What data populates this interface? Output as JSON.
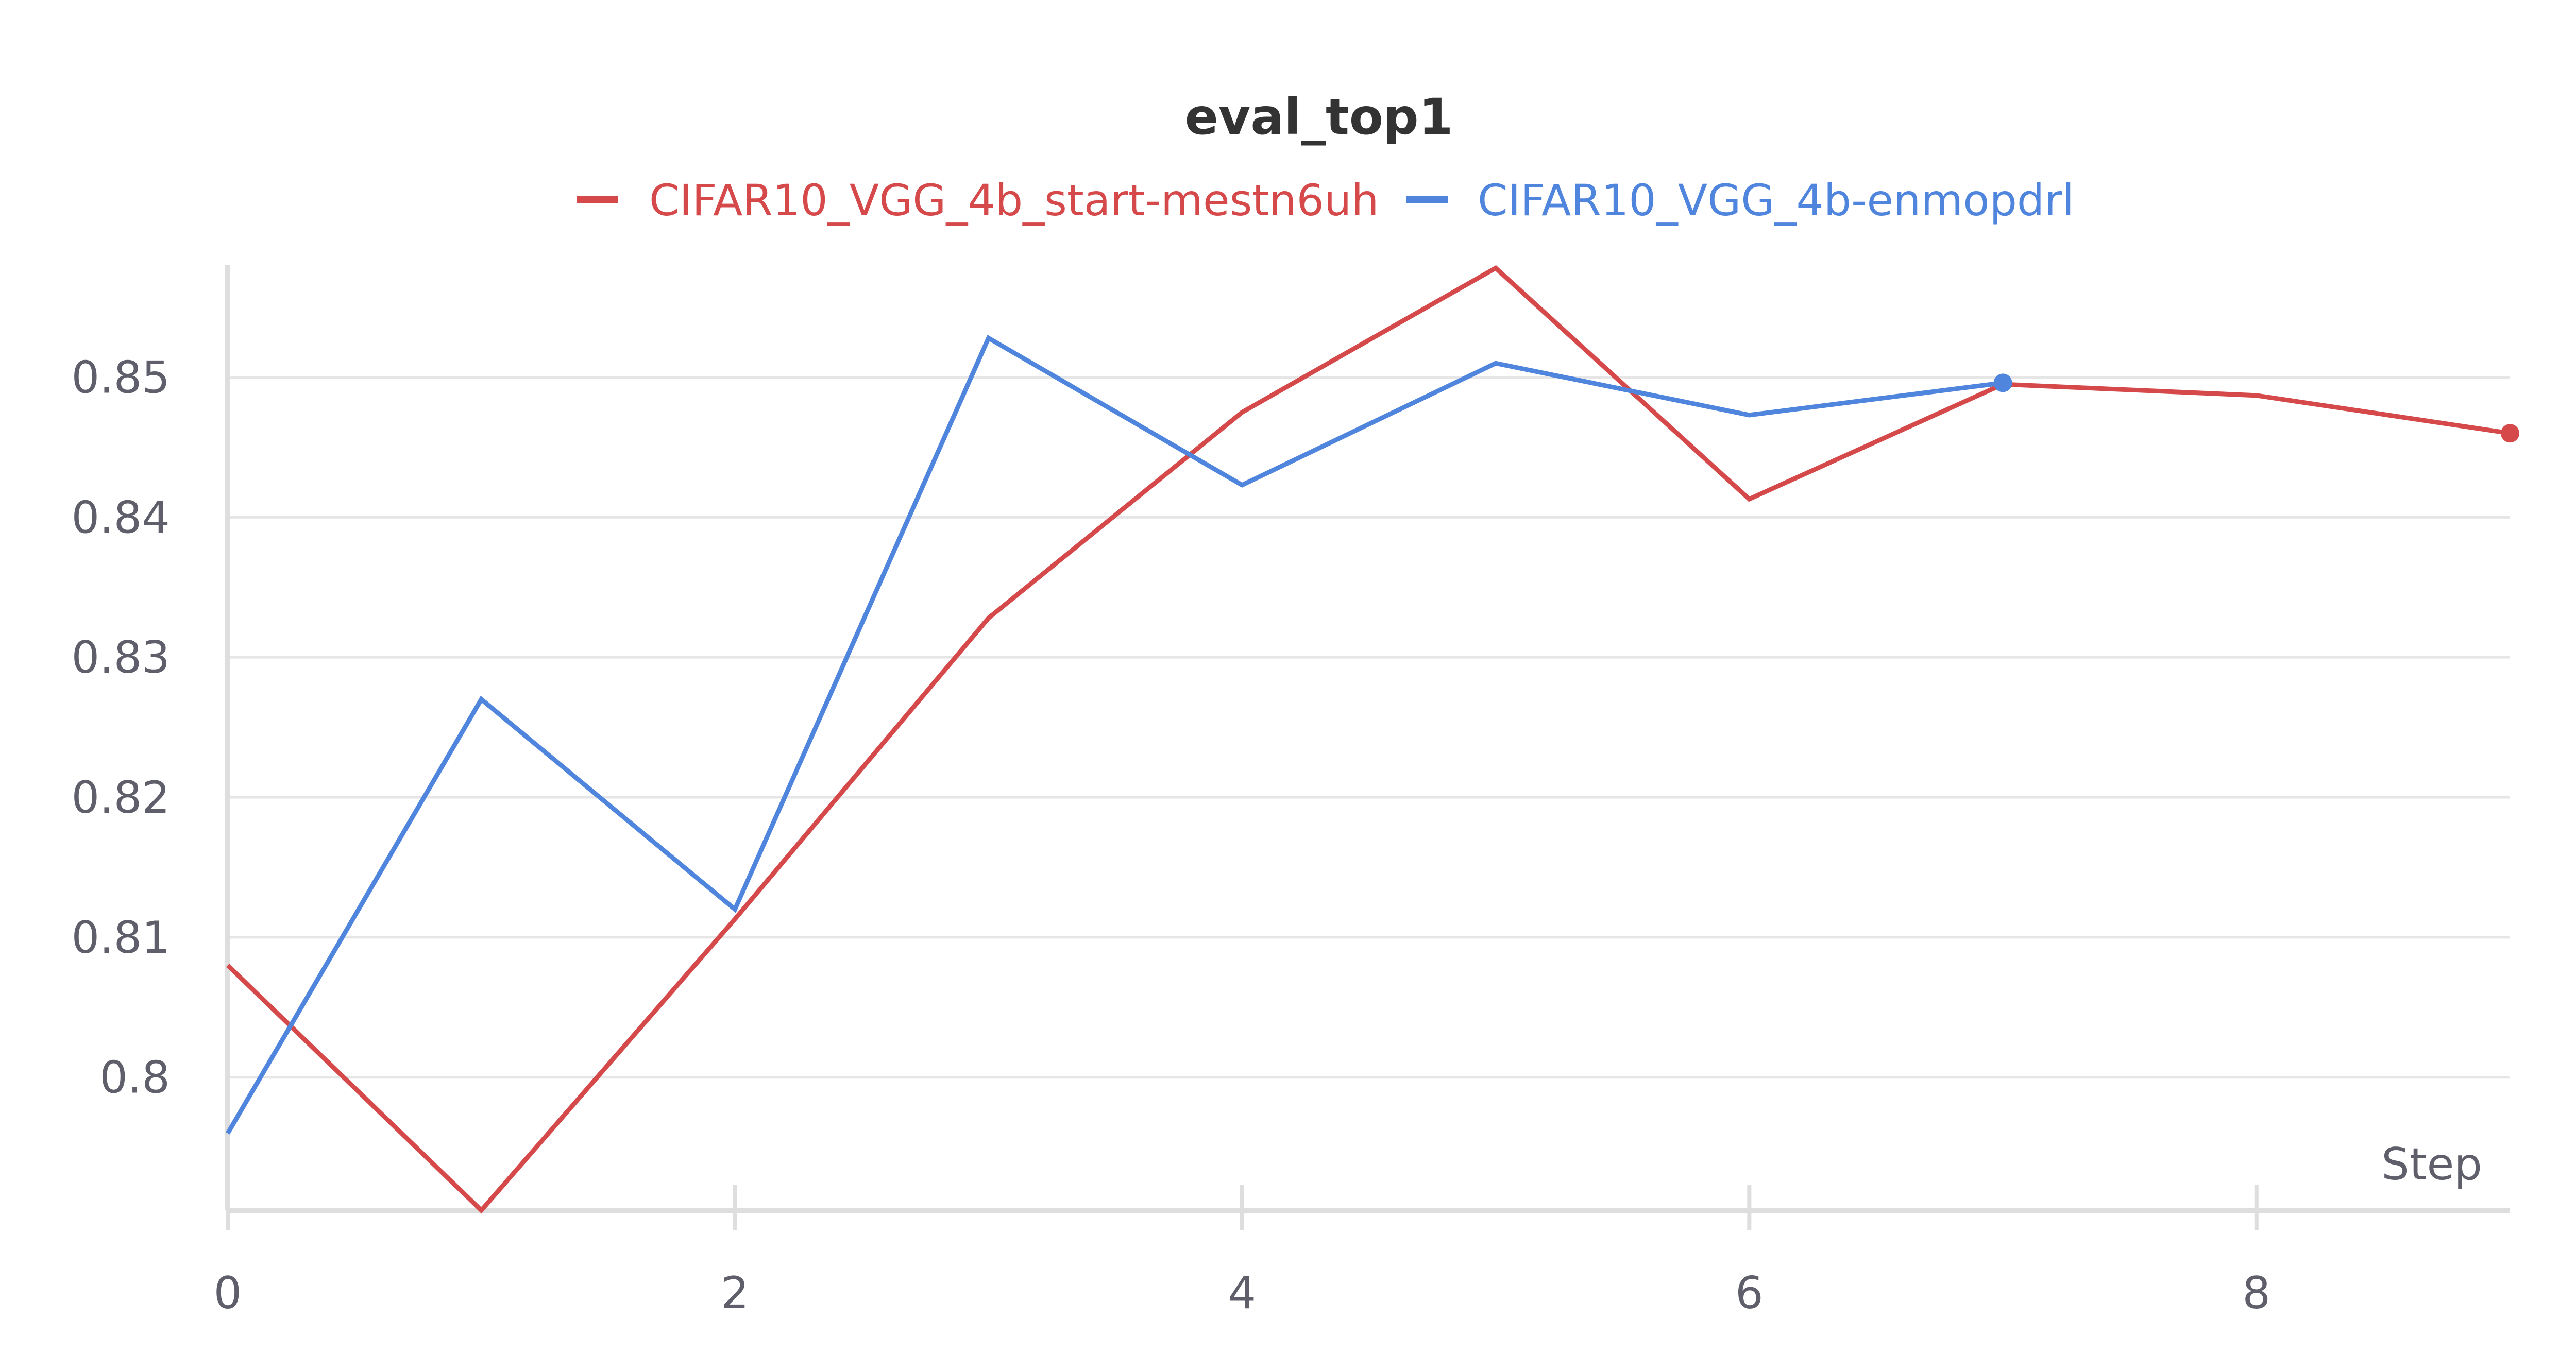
{
  "chart_data": {
    "type": "line",
    "title": "eval_top1",
    "xlabel": "Step",
    "ylabel": "",
    "xlim": [
      0,
      9
    ],
    "ylim": [
      0.7905,
      0.858
    ],
    "x_ticks": [
      0,
      2,
      4,
      6,
      8
    ],
    "x_tick_labels": [
      "0",
      "2",
      "4",
      "6",
      "8"
    ],
    "y_ticks": [
      0.8,
      0.81,
      0.82,
      0.83,
      0.84,
      0.85
    ],
    "y_tick_labels": [
      "0.8",
      "0.81",
      "0.82",
      "0.83",
      "0.84",
      "0.85"
    ],
    "grid": true,
    "legend_position": "top-center",
    "series": [
      {
        "name": "CIFAR10_VGG_4b_start-mestn6uh",
        "color": "#d6494b",
        "x": [
          0,
          1,
          2,
          3,
          4,
          5,
          6,
          7,
          8,
          9
        ],
        "values": [
          0.808,
          0.7905,
          0.8113,
          0.8328,
          0.8475,
          0.8578,
          0.8413,
          0.8495,
          0.8487,
          0.846
        ]
      },
      {
        "name": "CIFAR10_VGG_4b-enmopdrl",
        "color": "#4f85dc",
        "x": [
          0,
          1,
          2,
          3,
          4,
          5,
          6,
          7
        ],
        "values": [
          0.796,
          0.827,
          0.812,
          0.8528,
          0.8423,
          0.851,
          0.8473,
          0.8496
        ]
      }
    ]
  }
}
